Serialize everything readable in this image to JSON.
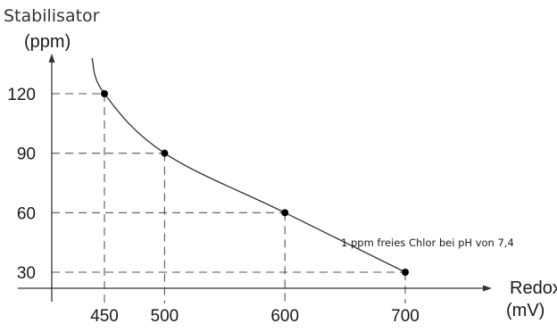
{
  "chart_data": {
    "type": "line",
    "title": "",
    "ylabel": "Stabilisator",
    "ylabel_unit": "(ppm)",
    "xlabel": "Redox",
    "xlabel_unit": "(mV)",
    "x_ticks": [
      450,
      500,
      600,
      700
    ],
    "y_ticks": [
      30,
      60,
      90,
      120
    ],
    "points": [
      {
        "x": 450,
        "y": 120
      },
      {
        "x": 500,
        "y": 90
      },
      {
        "x": 600,
        "y": 60
      },
      {
        "x": 700,
        "y": 30
      }
    ],
    "annotation": "1 ppm freies Chlor bei pH von 7,4",
    "grid": false,
    "guide_lines": "dashed",
    "colors": {
      "line": "#333333",
      "axis": "#333333",
      "guide": "#555555",
      "marker": "#000000"
    }
  }
}
